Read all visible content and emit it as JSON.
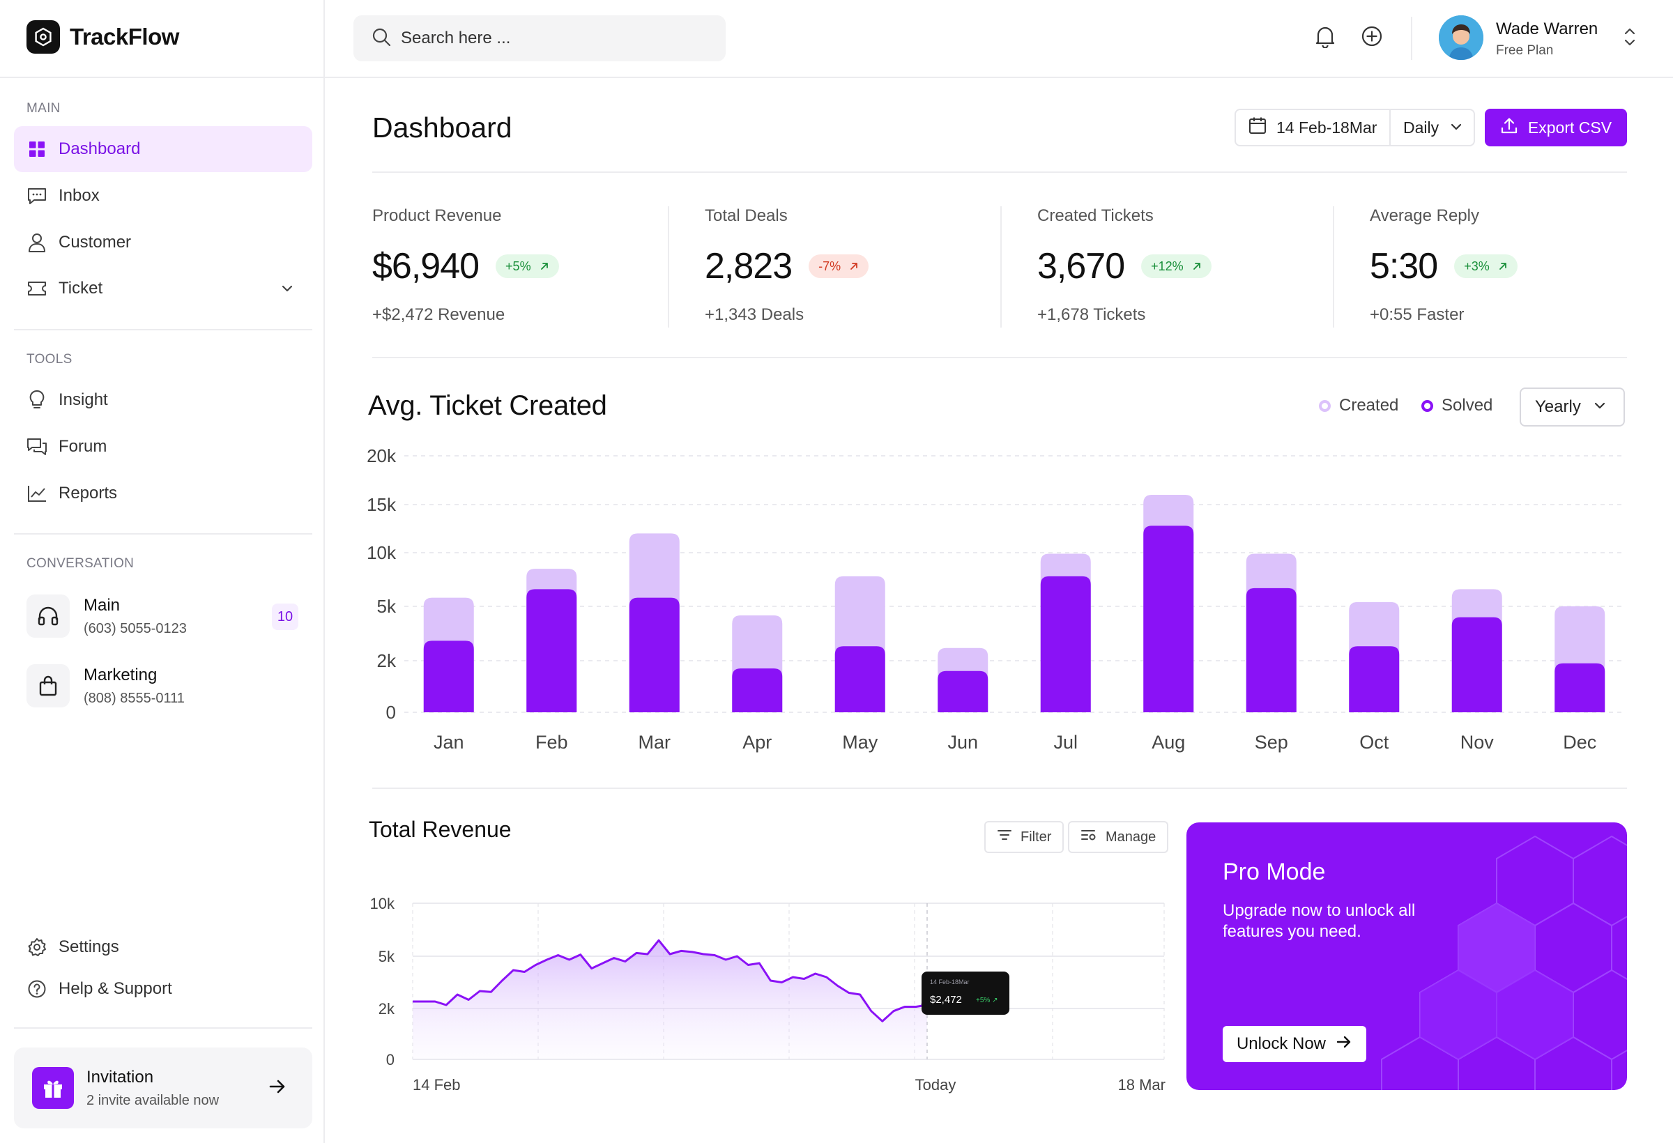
{
  "app": {
    "name": "TrackFlow"
  },
  "search": {
    "placeholder": "Search here ..."
  },
  "user": {
    "name": "Wade Warren",
    "plan": "Free Plan"
  },
  "sidebar": {
    "main_label": "MAIN",
    "main_items": [
      {
        "label": "Dashboard",
        "icon": "grid-icon",
        "active": true
      },
      {
        "label": "Inbox",
        "icon": "message-icon"
      },
      {
        "label": "Customer",
        "icon": "user-icon"
      },
      {
        "label": "Ticket",
        "icon": "ticket-icon"
      }
    ],
    "tools_label": "TOOLS",
    "tools_items": [
      {
        "label": "Insight",
        "icon": "lightbulb-icon"
      },
      {
        "label": "Forum",
        "icon": "forum-icon"
      },
      {
        "label": "Reports",
        "icon": "chart-line-icon"
      }
    ],
    "conversation_label": "CONVERSATION",
    "conversations": [
      {
        "name": "Main",
        "phone": "(603) 5055-0123",
        "badge": "10",
        "icon": "headphones-icon"
      },
      {
        "name": "Marketing",
        "phone": "(808) 8555-0111",
        "icon": "shopping-bag-icon"
      }
    ],
    "bottom_items": [
      {
        "label": "Settings",
        "icon": "gear-icon"
      },
      {
        "label": "Help & Support",
        "icon": "help-icon"
      }
    ],
    "invitation": {
      "title": "Invitation",
      "subtitle": "2 invite available now"
    }
  },
  "header": {
    "title": "Dashboard",
    "date_range": "14 Feb-18Mar",
    "period": "Daily",
    "export_label": "Export CSV"
  },
  "stats": [
    {
      "label": "Product Revenue",
      "value": "$6,940",
      "change": "+5%",
      "trend": "up",
      "sub": "+$2,472 Revenue"
    },
    {
      "label": "Total Deals",
      "value": "2,823",
      "change": "-7%",
      "trend": "down",
      "sub": "+1,343 Deals"
    },
    {
      "label": "Created Tickets",
      "value": "3,670",
      "change": "+12%",
      "trend": "up",
      "sub": "+1,678 Tickets"
    },
    {
      "label": "Average Reply",
      "value": "5:30",
      "change": "+3%",
      "trend": "up",
      "sub": "+0:55 Faster"
    }
  ],
  "ticket_chart": {
    "title": "Avg. Ticket Created",
    "legend_created": "Created",
    "legend_solved": "Solved",
    "period": "Yearly"
  },
  "revenue_chart": {
    "title": "Total Revenue",
    "filter_label": "Filter",
    "manage_label": "Manage",
    "tooltip": {
      "date": "14 Feb-18Mar",
      "value": "$2,472",
      "change": "+5%"
    },
    "x_labels": [
      "14 Feb",
      "Today",
      "18 Mar"
    ]
  },
  "pro_mode": {
    "title": "Pro Mode",
    "description": "Upgrade now to unlock all features you need.",
    "button": "Unlock Now"
  },
  "colors": {
    "accent": "#8a12f6",
    "accent_light": "#dcc2fb",
    "accent_bg": "#f6e9ff"
  },
  "chart_data": [
    {
      "type": "bar",
      "title": "Avg. Ticket Created",
      "categories": [
        "Jan",
        "Feb",
        "Mar",
        "Apr",
        "May",
        "Jun",
        "Jul",
        "Aug",
        "Sep",
        "Oct",
        "Nov",
        "Dec"
      ],
      "y_ticks": [
        0,
        2000,
        5000,
        10000,
        15000,
        20000
      ],
      "y_tick_labels": [
        "0",
        "2k",
        "5k",
        "10k",
        "15k",
        "20k"
      ],
      "series": [
        {
          "name": "Created",
          "values": [
            5800,
            8500,
            12000,
            4500,
            7800,
            2700,
            9900,
            16000,
            9900,
            5400,
            6600,
            5000
          ]
        },
        {
          "name": "Solved",
          "values": [
            3100,
            6600,
            5800,
            1700,
            2800,
            1600,
            7800,
            12800,
            6700,
            2800,
            4400,
            1900
          ]
        }
      ],
      "ylim": [
        0,
        20000
      ]
    },
    {
      "type": "area",
      "title": "Total Revenue",
      "y_ticks": [
        0,
        2000,
        5000,
        10000
      ],
      "y_tick_labels": [
        "0",
        "2k",
        "5k",
        "10k"
      ],
      "x": [
        0,
        0.5,
        1,
        1.5,
        2,
        2.5,
        3,
        3.5,
        4,
        4.5,
        5,
        5.5,
        6,
        6.5,
        7,
        7.5,
        8,
        8.5,
        9,
        9.5,
        10,
        10.5,
        11,
        11.5,
        12,
        12.5,
        13,
        13.5,
        14,
        14.5,
        15,
        15.5,
        16,
        16.5,
        17,
        17.5,
        18,
        18.5,
        19,
        19.5,
        20,
        20.5,
        21,
        21.5,
        22,
        22.5,
        23
      ],
      "values": [
        2400,
        2400,
        2400,
        2200,
        2800,
        2500,
        3000,
        2950,
        3600,
        4200,
        4100,
        4500,
        4800,
        5100,
        4800,
        5150,
        4300,
        4600,
        4900,
        4700,
        5300,
        5200,
        6500,
        5200,
        5500,
        5400,
        5200,
        5100,
        4800,
        5000,
        4500,
        4600,
        3600,
        3500,
        3800,
        3700,
        4000,
        3800,
        3300,
        2900,
        2800,
        1900,
        1500,
        1900,
        2100,
        2100,
        2200
      ],
      "x_labels": [
        "14 Feb",
        "Today",
        "18 Mar"
      ],
      "ylim": [
        0,
        10000
      ]
    }
  ]
}
